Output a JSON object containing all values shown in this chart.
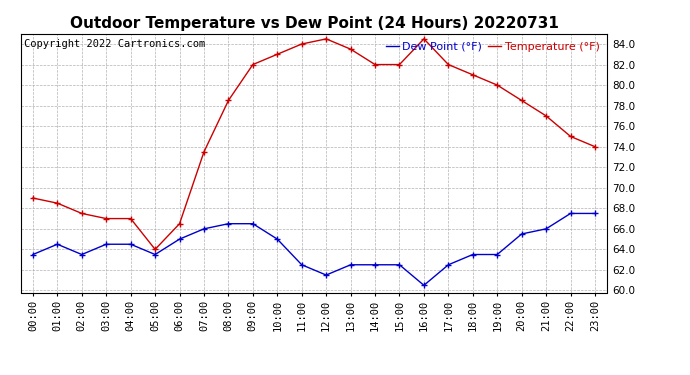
{
  "title": "Outdoor Temperature vs Dew Point (24 Hours) 20220731",
  "copyright_text": "Copyright 2022 Cartronics.com",
  "legend_dew": "Dew Point (°F)",
  "legend_temp": "Temperature (°F)",
  "hours": [
    "00:00",
    "01:00",
    "02:00",
    "03:00",
    "04:00",
    "05:00",
    "06:00",
    "07:00",
    "08:00",
    "09:00",
    "10:00",
    "11:00",
    "12:00",
    "13:00",
    "14:00",
    "15:00",
    "16:00",
    "17:00",
    "18:00",
    "19:00",
    "20:00",
    "21:00",
    "22:00",
    "23:00"
  ],
  "temperature": [
    69.0,
    68.5,
    67.5,
    67.0,
    67.0,
    64.0,
    66.5,
    73.5,
    78.5,
    82.0,
    83.0,
    84.0,
    84.5,
    83.5,
    82.0,
    82.0,
    84.5,
    82.0,
    81.0,
    80.0,
    78.5,
    77.0,
    75.0,
    74.0
  ],
  "dew_point": [
    63.5,
    64.5,
    63.5,
    64.5,
    64.5,
    63.5,
    65.0,
    66.0,
    66.5,
    66.5,
    65.0,
    62.5,
    61.5,
    62.5,
    62.5,
    62.5,
    60.5,
    62.5,
    63.5,
    63.5,
    65.5,
    66.0,
    67.5,
    67.5
  ],
  "temp_color": "#cc0000",
  "dew_color": "#0000cc",
  "ylim_min": 60.0,
  "ylim_max": 84.5,
  "yticks": [
    60.0,
    62.0,
    64.0,
    66.0,
    68.0,
    70.0,
    72.0,
    74.0,
    76.0,
    78.0,
    80.0,
    82.0,
    84.0
  ],
  "background_color": "#ffffff",
  "grid_color": "#aaaaaa",
  "title_fontsize": 11,
  "axis_fontsize": 7.5,
  "legend_fontsize": 8,
  "copyright_fontsize": 7.5
}
